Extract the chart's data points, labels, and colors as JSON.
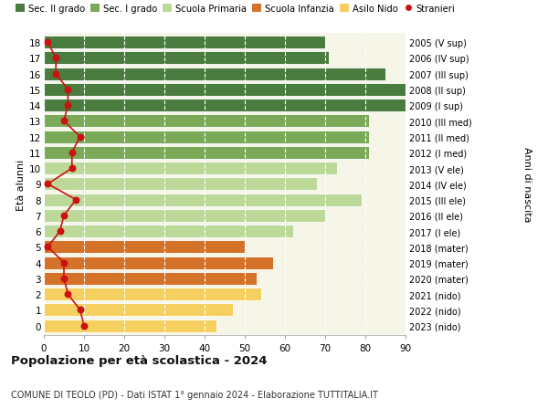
{
  "ages": [
    18,
    17,
    16,
    15,
    14,
    13,
    12,
    11,
    10,
    9,
    8,
    7,
    6,
    5,
    4,
    3,
    2,
    1,
    0
  ],
  "bar_values": [
    70,
    71,
    85,
    92,
    93,
    81,
    81,
    81,
    73,
    68,
    79,
    70,
    62,
    50,
    57,
    53,
    54,
    47,
    43
  ],
  "stranieri": [
    1,
    3,
    3,
    6,
    6,
    5,
    9,
    7,
    7,
    1,
    8,
    5,
    4,
    1,
    5,
    5,
    6,
    9,
    10
  ],
  "right_labels": [
    "2005 (V sup)",
    "2006 (IV sup)",
    "2007 (III sup)",
    "2008 (II sup)",
    "2009 (I sup)",
    "2010 (III med)",
    "2011 (II med)",
    "2012 (I med)",
    "2013 (V ele)",
    "2014 (IV ele)",
    "2015 (III ele)",
    "2016 (II ele)",
    "2017 (I ele)",
    "2018 (mater)",
    "2019 (mater)",
    "2020 (mater)",
    "2021 (nido)",
    "2022 (nido)",
    "2023 (nido)"
  ],
  "bar_colors_by_age": {
    "14": "#4a7c3f",
    "15": "#4a7c3f",
    "16": "#4a7c3f",
    "17": "#4a7c3f",
    "18": "#4a7c3f",
    "11": "#7aaa58",
    "12": "#7aaa58",
    "13": "#7aaa58",
    "6": "#bcd99a",
    "7": "#bcd99a",
    "8": "#bcd99a",
    "9": "#bcd99a",
    "10": "#bcd99a",
    "3": "#d4722a",
    "4": "#d4722a",
    "5": "#d4722a",
    "0": "#f5d060",
    "1": "#f5d060",
    "2": "#f5d060"
  },
  "legend_labels": [
    "Sec. II grado",
    "Sec. I grado",
    "Scuola Primaria",
    "Scuola Infanzia",
    "Asilo Nido",
    "Stranieri"
  ],
  "legend_colors": [
    "#4a7c3f",
    "#7aaa58",
    "#bcd99a",
    "#d4722a",
    "#f5d060",
    "#cc1111"
  ],
  "stranieri_color": "#cc1111",
  "title": "Popolazione per età scolastica - 2024",
  "subtitle": "COMUNE DI TEOLO (PD) - Dati ISTAT 1° gennaio 2024 - Elaborazione TUTTITALIA.IT",
  "ylabel_left": "Età alunni",
  "ylabel_right": "Anni di nascita",
  "xlim": [
    0,
    90
  ],
  "xticks": [
    0,
    10,
    20,
    30,
    40,
    50,
    60,
    70,
    80,
    90
  ],
  "plot_bg": "#f5f5e8",
  "fig_bg": "#ffffff",
  "grid_color": "#ffffff"
}
